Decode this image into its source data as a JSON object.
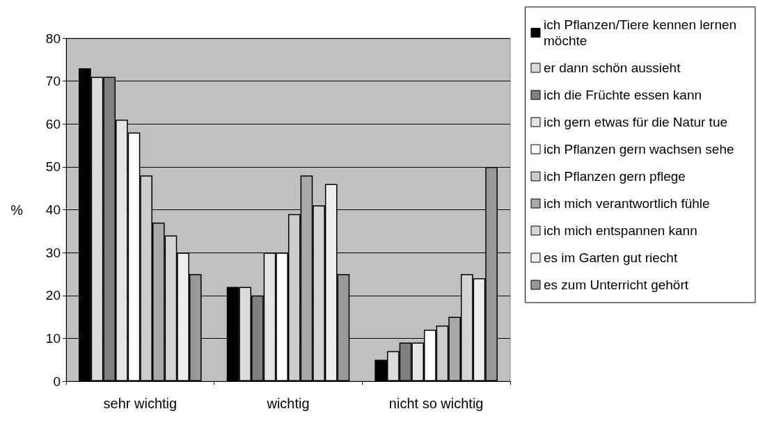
{
  "chart_data": {
    "type": "bar",
    "ylabel": "%",
    "categories": [
      "sehr wichtig",
      "wichtig",
      "nicht so wichtig"
    ],
    "ylim": [
      0,
      80
    ],
    "yticks": [
      0,
      10,
      20,
      30,
      40,
      50,
      60,
      70,
      80
    ],
    "grid": "y",
    "legend": "right",
    "series": [
      {
        "name": "ich Pflanzen/Tiere kennen lernen möchte",
        "color": "#000000",
        "values": [
          73,
          22,
          5
        ]
      },
      {
        "name": "er dann schön aussieht",
        "color": "#dcdcdc",
        "values": [
          71,
          22,
          7
        ]
      },
      {
        "name": "ich die Früchte essen kann",
        "color": "#808080",
        "values": [
          71,
          20,
          9
        ]
      },
      {
        "name": "ich gern etwas für die Natur tue",
        "color": "#e4e4e4",
        "values": [
          61,
          30,
          9
        ]
      },
      {
        "name": "ich Pflanzen gern wachsen sehe",
        "color": "#ffffff",
        "values": [
          58,
          30,
          12
        ]
      },
      {
        "name": "ich Pflanzen gern pflege",
        "color": "#cccccc",
        "values": [
          48,
          39,
          13
        ]
      },
      {
        "name": "ich mich verantwortlich fühle",
        "color": "#a8a8a8",
        "values": [
          37,
          48,
          15
        ]
      },
      {
        "name": "ich mich entspannen kann",
        "color": "#d4d4d4",
        "values": [
          34,
          41,
          25
        ]
      },
      {
        "name": "es im Garten gut riecht",
        "color": "#eeeeee",
        "values": [
          30,
          46,
          24
        ]
      },
      {
        "name": "es zum Unterricht gehört",
        "color": "#989898",
        "values": [
          25,
          25,
          50
        ]
      }
    ]
  }
}
